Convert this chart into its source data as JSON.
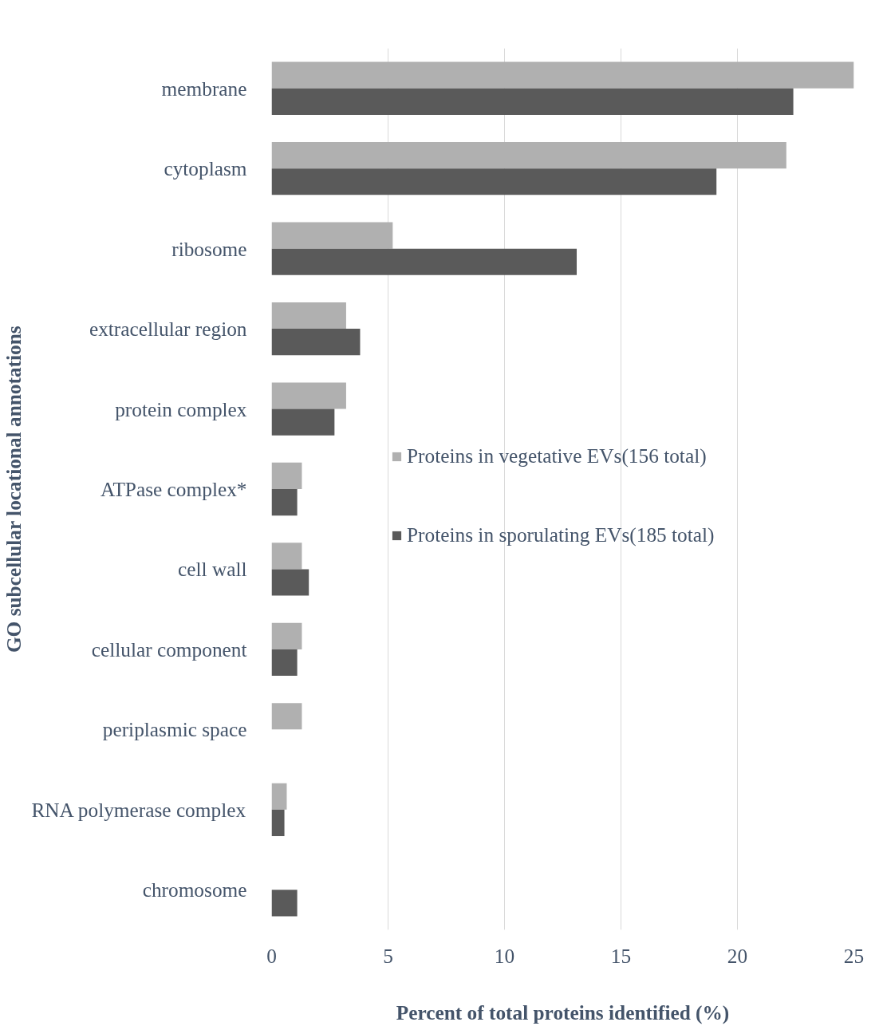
{
  "chart_data": {
    "type": "bar",
    "orientation": "horizontal",
    "categories": [
      "membrane",
      "cytoplasm",
      "ribosome",
      "extracellular region",
      "protein complex",
      "ATPase complex*",
      "cell wall",
      "cellular component",
      "periplasmic space",
      "RNA polymerase complex",
      "chromosome"
    ],
    "series": [
      {
        "name": "Proteins in vegetative EVs(156 total)",
        "color": "#b0b0b0",
        "values": [
          25.0,
          22.1,
          5.2,
          3.2,
          3.2,
          1.3,
          1.3,
          1.3,
          1.3,
          0.65,
          0
        ]
      },
      {
        "name": "Proteins in sporulating EVs(185 total)",
        "color": "#5a5a5a",
        "values": [
          22.4,
          19.1,
          13.1,
          3.8,
          2.7,
          1.1,
          1.6,
          1.1,
          0,
          0.55,
          1.1
        ]
      }
    ],
    "xlim": [
      0,
      25
    ],
    "xticks": [
      0,
      5,
      10,
      15,
      20,
      25
    ],
    "xlabel": "Percent of total proteins identified (%)",
    "ylabel": "GO subcellular locational annotations",
    "grid": "x",
    "legend": "right"
  }
}
